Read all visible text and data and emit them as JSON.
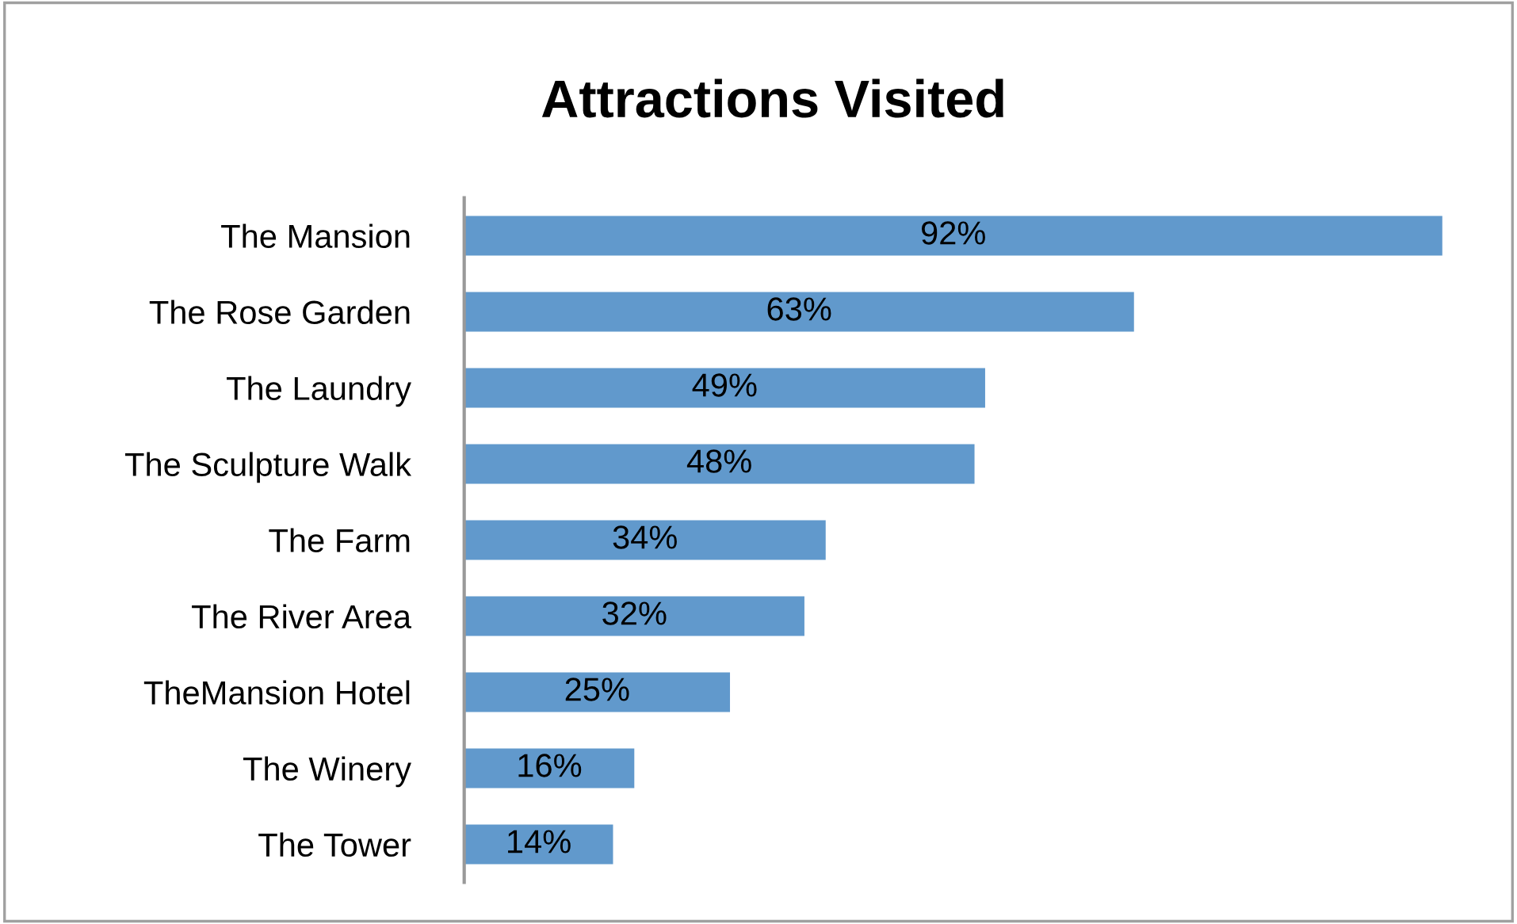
{
  "chart_data": {
    "type": "bar",
    "orientation": "horizontal",
    "title": "Attractions Visited",
    "categories": [
      "The Mansion",
      "The Rose Garden",
      "The Laundry",
      "The Sculpture Walk",
      "The Farm",
      "The River Area",
      "TheMansion Hotel",
      "The Winery",
      "The Tower"
    ],
    "values": [
      92,
      63,
      49,
      48,
      34,
      32,
      25,
      16,
      14
    ],
    "value_labels": [
      "92%",
      "63%",
      "49%",
      "48%",
      "34%",
      "32%",
      "25%",
      "16%",
      "14%"
    ],
    "color": "#6199cc",
    "tick_labels": "y",
    "grid": false,
    "legend": false
  }
}
